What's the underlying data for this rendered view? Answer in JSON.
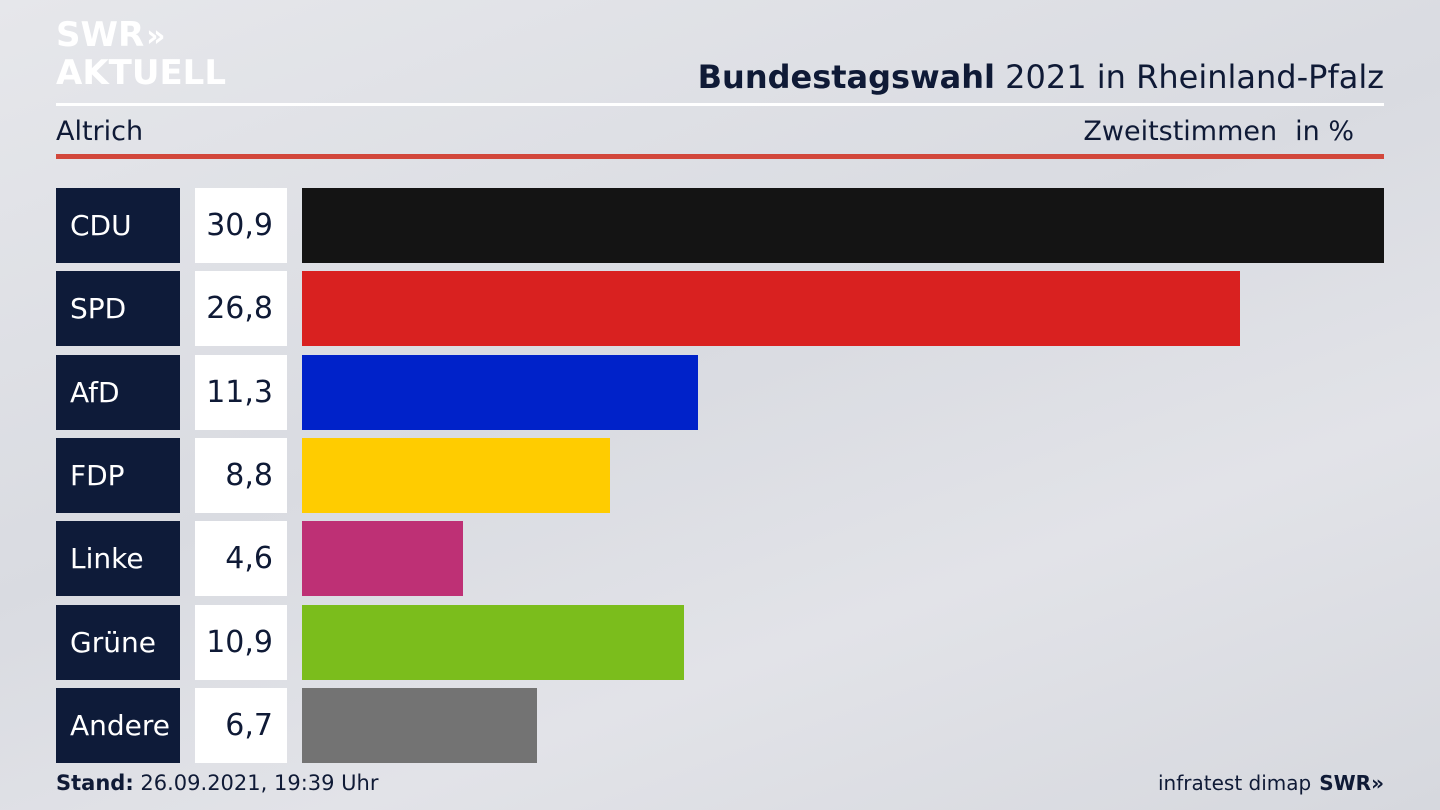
{
  "brand": {
    "line1": "SWR",
    "chevrons": "»",
    "line2": "AKTUELL"
  },
  "header": {
    "title_bold": "Bundestagswahl",
    "title_rest": " 2021 in Rheinland-Pfalz",
    "region": "Altrich",
    "measure": "Zweitstimmen",
    "unit": "in %"
  },
  "chart_data": {
    "type": "bar",
    "orientation": "horizontal",
    "categories": [
      "CDU",
      "SPD",
      "AfD",
      "FDP",
      "Linke",
      "Grüne",
      "Andere"
    ],
    "values": [
      30.9,
      26.8,
      11.3,
      8.8,
      4.6,
      10.9,
      6.7
    ],
    "value_labels": [
      "30,9",
      "26,8",
      "11,3",
      "8,8",
      "4,6",
      "10,9",
      "6,7"
    ],
    "colors": [
      "#141414",
      "#d92120",
      "#0022c9",
      "#ffcc00",
      "#be3075",
      "#7bbd1c",
      "#737373"
    ],
    "xlim": [
      0,
      30.9
    ],
    "grid": false,
    "legend": "none"
  },
  "footer": {
    "stand_label": "Stand:",
    "stand_value": " 26.09.2021, 19:39 Uhr",
    "source": "infratest dimap",
    "brand_small": "SWR»"
  }
}
